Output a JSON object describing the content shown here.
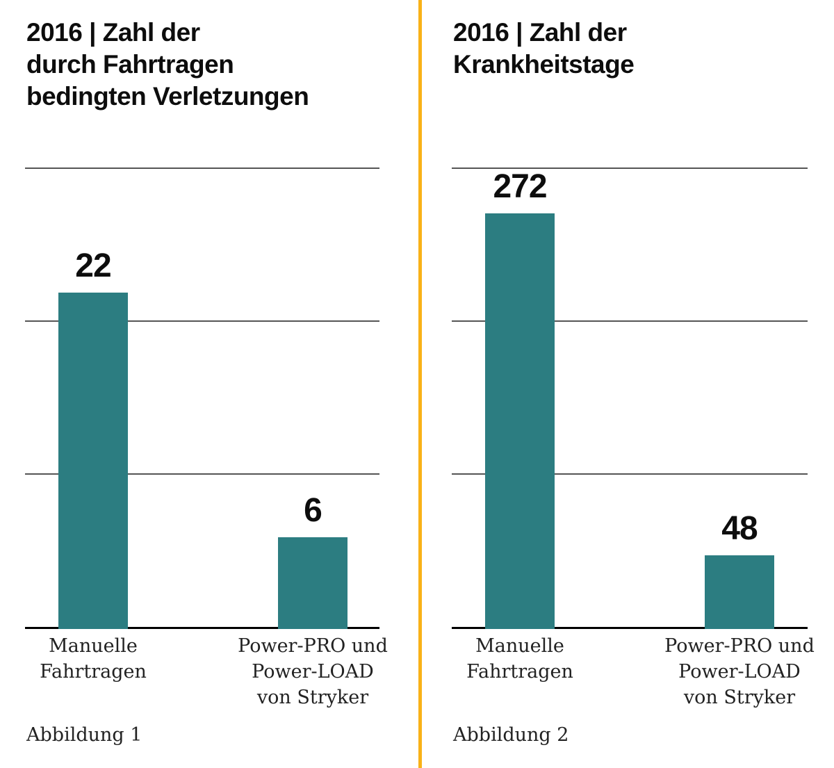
{
  "page": {
    "background": "#ffffff",
    "divider_color": "#F9B218",
    "bar_color": "#2C7D81",
    "grid_color": "#555555",
    "axis_color": "#000000"
  },
  "chart_data": [
    {
      "type": "bar",
      "title": "2016 | Zahl der\ndurch Fahrtragen\nbedingten Verletzungen",
      "categories": [
        "Manuelle Fahrtragen",
        "Power-PRO und Power-LOAD von Stryker"
      ],
      "category_display": [
        "Manuelle\nFahrtragen",
        "Power-PRO und\nPower-LOAD\nvon Stryker"
      ],
      "values": [
        22,
        6
      ],
      "value_labels": [
        "22",
        "6"
      ],
      "xlabel": "",
      "ylabel": "",
      "ylim": [
        0,
        30
      ],
      "gridline_values": [
        10,
        20,
        30
      ],
      "grid": true,
      "legend": "none",
      "caption": "Abbildung 1"
    },
    {
      "type": "bar",
      "title": "2016 | Zahl der\nKrankheitstage",
      "categories": [
        "Manuelle Fahrtragen",
        "Power-PRO und Power-LOAD von Stryker"
      ],
      "category_display": [
        "Manuelle\nFahrtragen",
        "Power-PRO und\nPower-LOAD\nvon Stryker"
      ],
      "values": [
        272,
        48
      ],
      "value_labels": [
        "272",
        "48"
      ],
      "xlabel": "",
      "ylabel": "",
      "ylim": [
        0,
        300
      ],
      "gridline_values": [
        100,
        200,
        300
      ],
      "grid": true,
      "legend": "none",
      "caption": "Abbildung 2"
    }
  ]
}
